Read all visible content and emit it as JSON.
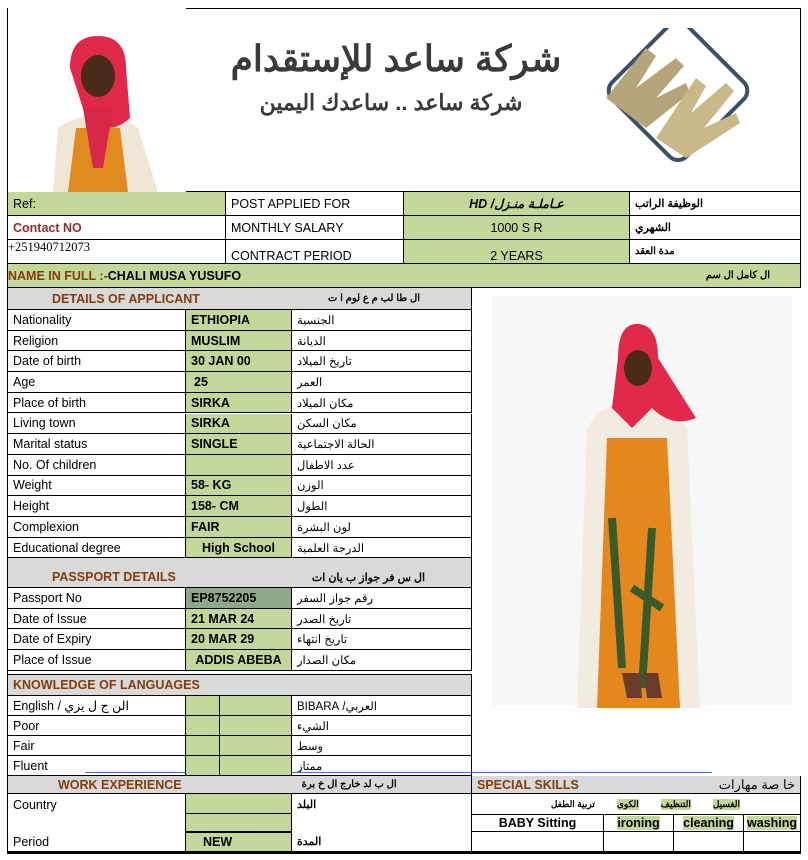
{
  "header": {
    "company_ar": "شركة ساعد للإستقدام",
    "tagline_ar": "شركة ساعد .. ساعدك اليمين"
  },
  "top": {
    "ref_label": "Ref:",
    "contact_label": "Contact NO",
    "contact_value": "+251940712073",
    "post_label": "POST  APPLIED  FOR",
    "post_value": "عـاملـة منـزل/ HD",
    "post_ar": "الوظيفة الراتب",
    "salary_label": "MONTHLY SALARY",
    "salary_value": "1000 S R",
    "salary_ar": "الشهري",
    "contract_label": "CONTRACT PERIOD",
    "contract_value": "2 YEARS",
    "contract_ar": "مدة العقد"
  },
  "name": {
    "label": "NAME IN FULL :-",
    "value": "CHALI MUSA YUSUFO",
    "label_ar": "ال كامل ال سم"
  },
  "details": {
    "title": "DETAILS OF APPLICANT",
    "title_ar": "ال طا لب م ع لوم ا ت",
    "rows": [
      {
        "label": "Nationality",
        "value": "ETHIOPIA",
        "ar": "الجنسية"
      },
      {
        "label": "Religion",
        "value": "MUSLIM",
        "ar": "الديانة"
      },
      {
        "label": "Date of birth",
        "value": "30 JAN 00",
        "ar": "تاريخ الميلاد"
      },
      {
        "label": "Age",
        "value": "25",
        "ar": "العمر"
      },
      {
        "label": "Place of birth",
        "value": "SIRKA",
        "ar": "مكان الميلاد"
      },
      {
        "label": "Living town",
        "value": "SIRKA",
        "ar": "مكان السكن"
      },
      {
        "label": "Marital status",
        "value": "SINGLE",
        "ar": "الحالة الاجتماعية"
      },
      {
        "label": "No. Of children",
        "value": "",
        "ar": "عدد الاطفال"
      },
      {
        "label": "Weight",
        "value": "58- KG",
        "ar": "الوزن"
      },
      {
        "label": "Height",
        "value": "158- CM",
        "ar": "الطول"
      },
      {
        "label": "Complexion",
        "value": "FAIR",
        "ar": "لون البشرة"
      },
      {
        "label": "Educational degree",
        "value": "High School",
        "ar": "الدرجة العلمية"
      }
    ]
  },
  "passport": {
    "title": "PASSPORT DETAILS",
    "title_ar": "ال س فر جواز ب يان ات",
    "rows": [
      {
        "label": "Passport No",
        "value": "EP8752205",
        "ar": "رقم جواز السفر"
      },
      {
        "label": "Date of Issue",
        "value": "21 MAR 24",
        "ar": "تاريخ الصدر"
      },
      {
        "label": "Date of Expiry",
        "value": "20 MAR 29",
        "ar": "تاريخ انتهاء"
      },
      {
        "label": "Place of Issue",
        "value": "ADDIS ABEBA",
        "ar": "مكان الصدار"
      }
    ]
  },
  "languages": {
    "title": "KNOWLEDGE OF LANGUAGES",
    "rows": [
      {
        "label": "English / الن ج ل يزي",
        "ar": "العربي/ BIBARA"
      },
      {
        "label": "Poor",
        "ar": "الشيء"
      },
      {
        "label": "Fair",
        "ar": "وسط"
      },
      {
        "label": "Fluent",
        "ar": "ممتاز"
      }
    ]
  },
  "work": {
    "title": "WORK EXPERIENCE",
    "title_ar": "ال ب لد خارج ال خ برة",
    "country_label": "Country",
    "country_ar": "البلد",
    "period_label": "Period",
    "period_value": "NEW",
    "period_ar": "المدة"
  },
  "skills": {
    "title": "SPECIAL SKILLS",
    "title_ar": "خا صة مهارات",
    "ar_items": [
      "تربية الطفل",
      "الكوى",
      "التنظيف",
      "الغسيل"
    ],
    "items": [
      "BABY Sitting",
      "ironing",
      "cleaning",
      "washing"
    ]
  },
  "colors": {
    "green": "#c4d79b",
    "gray": "#d9d9d9",
    "heading": "#843c0c",
    "contact": "#9c2a2a"
  }
}
